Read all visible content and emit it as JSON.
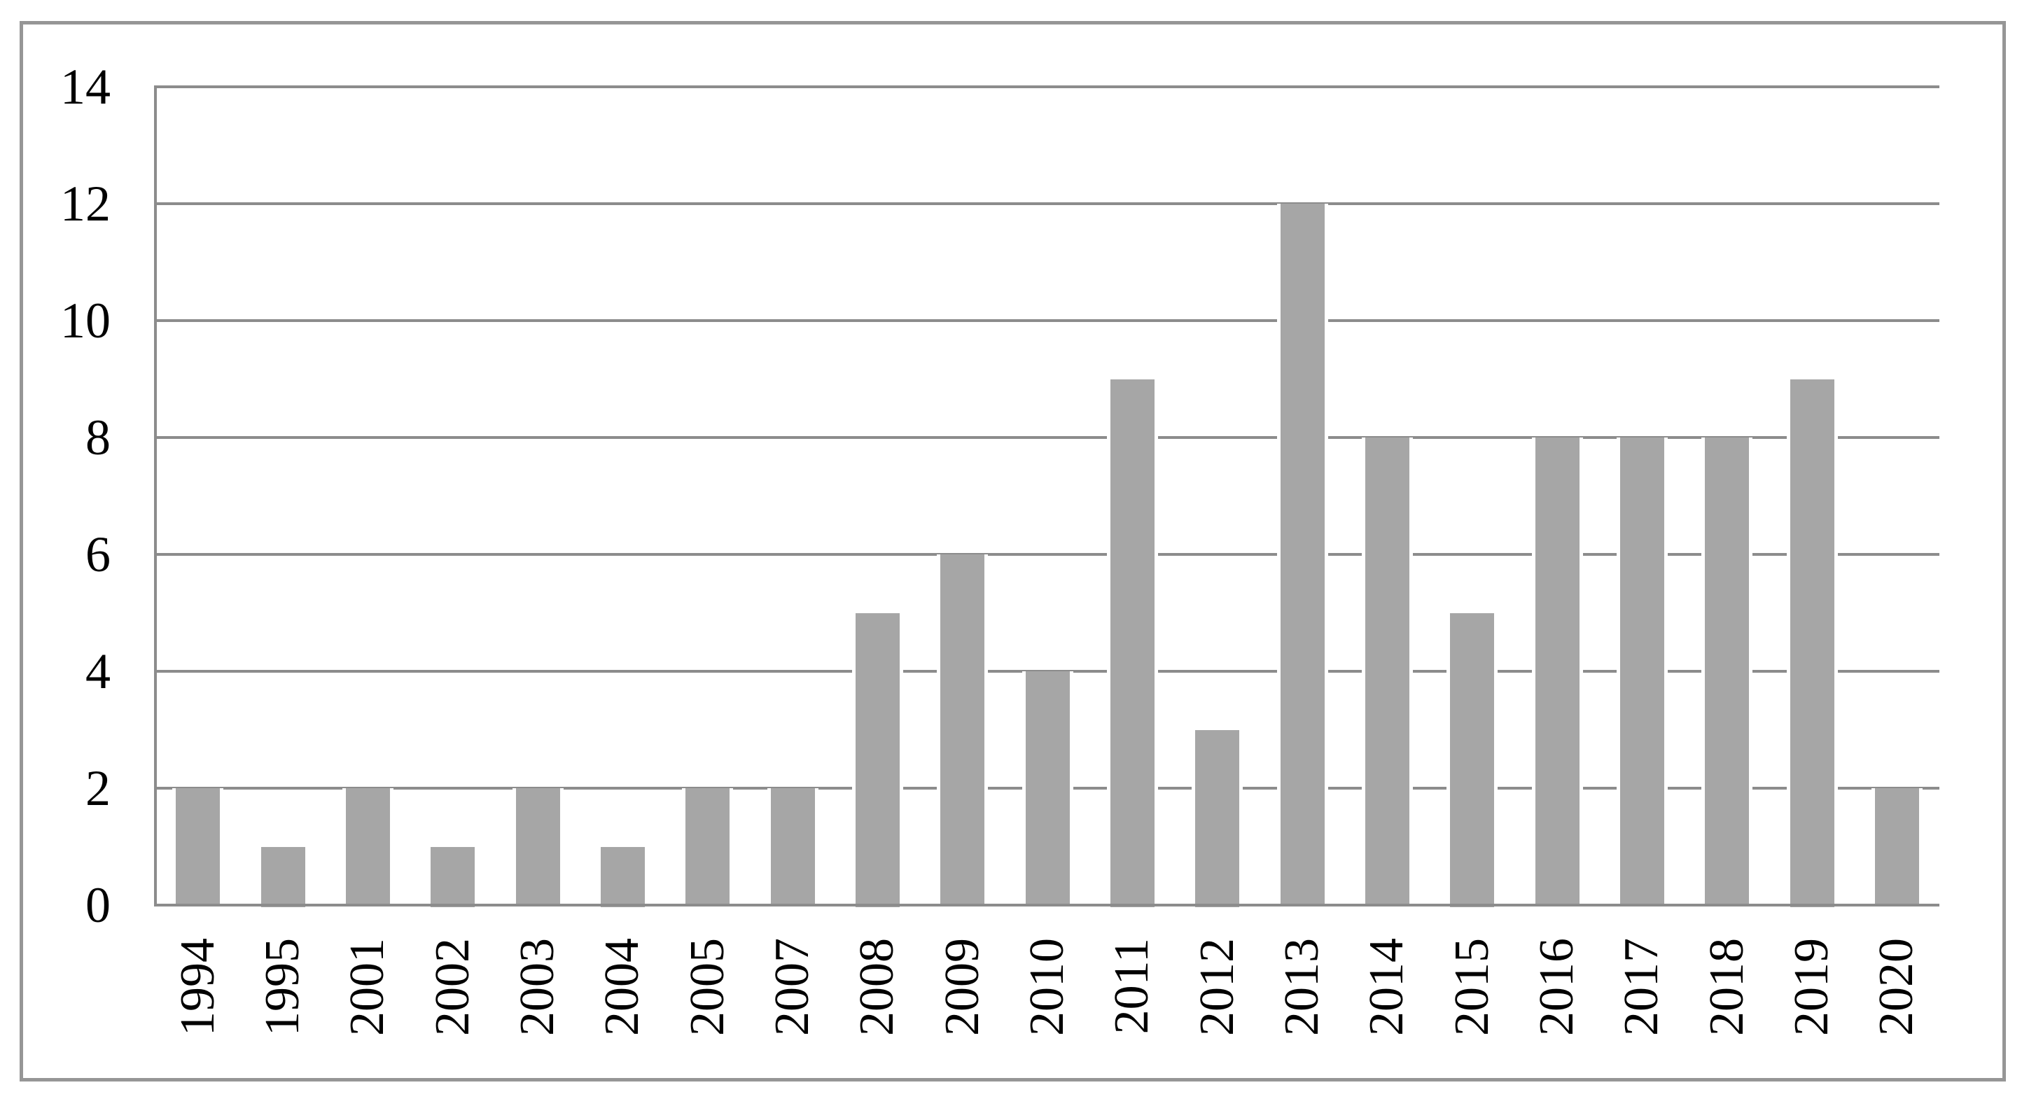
{
  "chart_data": {
    "type": "bar",
    "title": "",
    "xlabel": "",
    "ylabel": "",
    "categories": [
      "1994",
      "1995",
      "2001",
      "2002",
      "2003",
      "2004",
      "2005",
      "2007",
      "2008",
      "2009",
      "2010",
      "2011",
      "2012",
      "2013",
      "2014",
      "2015",
      "2016",
      "2017",
      "2018",
      "2019",
      "2020"
    ],
    "values": [
      2,
      1,
      2,
      1,
      2,
      1,
      2,
      2,
      5,
      6,
      4,
      9,
      3,
      12,
      8,
      5,
      8,
      8,
      8,
      9,
      2
    ],
    "ylim": [
      0,
      14
    ],
    "yticks": [
      0,
      2,
      4,
      6,
      8,
      10,
      12,
      14
    ],
    "grid": "horizontal",
    "legend_position": "none",
    "x_tick_rotation_degrees": 90,
    "colors": {
      "bar_fill": "#a6a6a6",
      "gridline": "#8c8c8c",
      "axis_line": "#8c8c8c",
      "figure_border": "#969696",
      "tick_label": "#000000",
      "background": "#ffffff"
    }
  }
}
